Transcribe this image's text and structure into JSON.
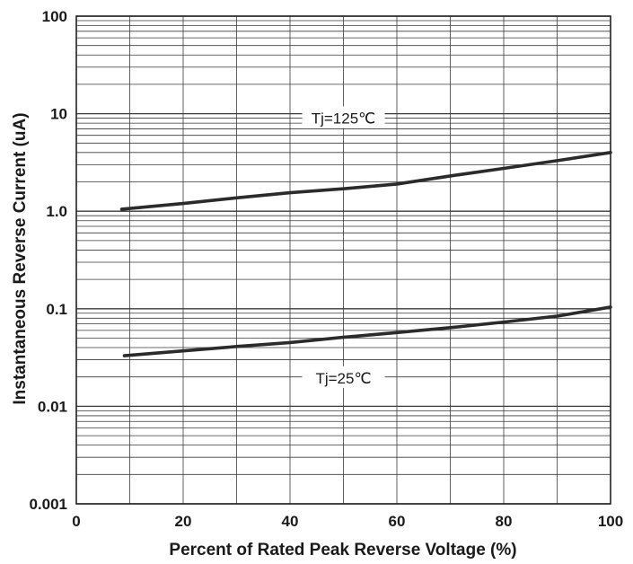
{
  "chart_data": {
    "type": "line",
    "xlabel": "Percent of Rated Peak Reverse Voltage (%)",
    "ylabel": "Instantaneous Reverse Current (uA)",
    "x_ticks": [
      "0",
      "20",
      "40",
      "60",
      "80",
      "100"
    ],
    "y_ticks": [
      "0.001",
      "0.01",
      "0.1",
      "1.0",
      "10",
      "100"
    ],
    "xlim": [
      0,
      100
    ],
    "ylim": [
      0.001,
      100
    ],
    "y_scale": "log",
    "grid": true,
    "series": [
      {
        "name": "Tj=125℃",
        "x": [
          8.5,
          20,
          30,
          40,
          50,
          60,
          70,
          80,
          90,
          100
        ],
        "y": [
          1.05,
          1.2,
          1.37,
          1.55,
          1.7,
          1.9,
          2.3,
          2.75,
          3.3,
          4.0
        ]
      },
      {
        "name": "Tj=25℃",
        "x": [
          9,
          20,
          30,
          40,
          50,
          60,
          70,
          80,
          90,
          100
        ],
        "y": [
          0.033,
          0.037,
          0.041,
          0.045,
          0.051,
          0.057,
          0.064,
          0.073,
          0.084,
          0.104
        ]
      }
    ],
    "annotations": [
      {
        "text": "Tj=125℃",
        "x": 50,
        "y": 9.0
      },
      {
        "text": "Tj=25℃",
        "x": 50,
        "y": 0.0195
      }
    ]
  },
  "colors": {
    "line": "#2b2b2b",
    "grid": "#3a3a3a",
    "text": "#1a1a1a",
    "background": "#ffffff"
  }
}
